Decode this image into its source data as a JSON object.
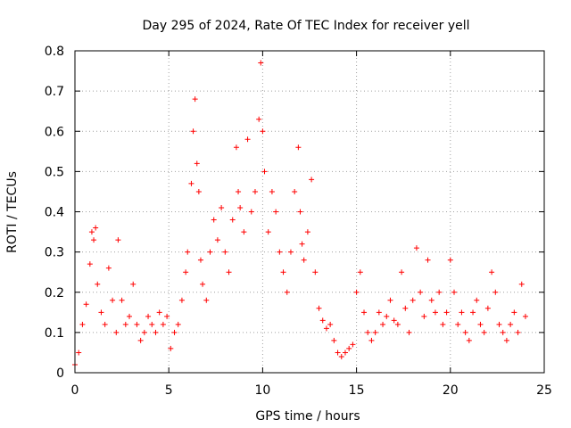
{
  "chart_data": {
    "type": "scatter",
    "title": "Day 295 of 2024, Rate Of TEC Index for receiver yell",
    "xlabel": "GPS time / hours",
    "ylabel": "ROTI / TECUs",
    "xlim": [
      0,
      25
    ],
    "ylim": [
      0,
      0.8
    ],
    "xticks": [
      {
        "value": 0,
        "label": "0"
      },
      {
        "value": 5,
        "label": "5"
      },
      {
        "value": 10,
        "label": "10"
      },
      {
        "value": 15,
        "label": "15"
      },
      {
        "value": 20,
        "label": "20"
      },
      {
        "value": 25,
        "label": "25"
      }
    ],
    "yticks": [
      {
        "value": 0,
        "label": "0"
      },
      {
        "value": 0.1,
        "label": "0.1"
      },
      {
        "value": 0.2,
        "label": "0.2"
      },
      {
        "value": 0.3,
        "label": "0.3"
      },
      {
        "value": 0.4,
        "label": "0.4"
      },
      {
        "value": 0.5,
        "label": "0.5"
      },
      {
        "value": 0.6,
        "label": "0.6"
      },
      {
        "value": 0.7,
        "label": "0.7"
      },
      {
        "value": 0.8,
        "label": "0.8"
      }
    ],
    "grid": true,
    "marker": "+",
    "color": "#ff0000",
    "series": [
      {
        "name": "ROTI",
        "note": "representative sample of the dense red '+' point cloud (x in hours, y in TECU/min)",
        "x": [
          0.0,
          0.2,
          0.4,
          0.6,
          0.8,
          0.9,
          1.0,
          1.1,
          1.2,
          1.4,
          1.6,
          1.8,
          2.0,
          2.2,
          2.3,
          2.5,
          2.7,
          2.9,
          3.1,
          3.3,
          3.5,
          3.7,
          3.9,
          4.1,
          4.3,
          4.5,
          4.7,
          4.9,
          5.1,
          5.3,
          5.5,
          5.7,
          5.9,
          6.0,
          6.2,
          6.3,
          6.4,
          6.5,
          6.6,
          6.7,
          6.8,
          7.0,
          7.2,
          7.4,
          7.6,
          7.8,
          8.0,
          8.2,
          8.4,
          8.6,
          8.7,
          8.8,
          9.0,
          9.2,
          9.4,
          9.6,
          9.8,
          9.9,
          10.0,
          10.1,
          10.3,
          10.5,
          10.7,
          10.9,
          11.1,
          11.3,
          11.5,
          11.7,
          11.9,
          12.0,
          12.1,
          12.2,
          12.4,
          12.6,
          12.8,
          13.0,
          13.2,
          13.4,
          13.6,
          13.8,
          14.0,
          14.2,
          14.4,
          14.6,
          14.8,
          15.0,
          15.2,
          15.4,
          15.6,
          15.8,
          16.0,
          16.2,
          16.4,
          16.6,
          16.8,
          17.0,
          17.2,
          17.4,
          17.6,
          17.8,
          18.0,
          18.2,
          18.4,
          18.6,
          18.8,
          19.0,
          19.2,
          19.4,
          19.6,
          19.8,
          20.0,
          20.2,
          20.4,
          20.6,
          20.8,
          21.0,
          21.2,
          21.4,
          21.6,
          21.8,
          22.0,
          22.2,
          22.4,
          22.6,
          22.8,
          23.0,
          23.2,
          23.4,
          23.6,
          23.8,
          24.0
        ],
        "y": [
          0.02,
          0.05,
          0.12,
          0.17,
          0.27,
          0.35,
          0.33,
          0.36,
          0.22,
          0.15,
          0.12,
          0.26,
          0.18,
          0.1,
          0.33,
          0.18,
          0.12,
          0.14,
          0.22,
          0.12,
          0.08,
          0.1,
          0.14,
          0.12,
          0.1,
          0.15,
          0.12,
          0.14,
          0.06,
          0.1,
          0.12,
          0.18,
          0.25,
          0.3,
          0.47,
          0.6,
          0.68,
          0.52,
          0.45,
          0.28,
          0.22,
          0.18,
          0.3,
          0.38,
          0.33,
          0.41,
          0.3,
          0.25,
          0.38,
          0.56,
          0.45,
          0.41,
          0.35,
          0.58,
          0.4,
          0.45,
          0.63,
          0.77,
          0.6,
          0.5,
          0.35,
          0.45,
          0.4,
          0.3,
          0.25,
          0.2,
          0.3,
          0.45,
          0.56,
          0.4,
          0.32,
          0.28,
          0.35,
          0.48,
          0.25,
          0.16,
          0.13,
          0.11,
          0.12,
          0.08,
          0.05,
          0.04,
          0.05,
          0.06,
          0.07,
          0.2,
          0.25,
          0.15,
          0.1,
          0.08,
          0.1,
          0.15,
          0.12,
          0.14,
          0.18,
          0.13,
          0.12,
          0.25,
          0.16,
          0.1,
          0.18,
          0.31,
          0.2,
          0.14,
          0.28,
          0.18,
          0.15,
          0.2,
          0.12,
          0.15,
          0.28,
          0.2,
          0.12,
          0.15,
          0.1,
          0.08,
          0.15,
          0.18,
          0.12,
          0.1,
          0.16,
          0.25,
          0.2,
          0.12,
          0.1,
          0.08,
          0.12,
          0.15,
          0.1,
          0.22,
          0.14
        ]
      }
    ]
  }
}
